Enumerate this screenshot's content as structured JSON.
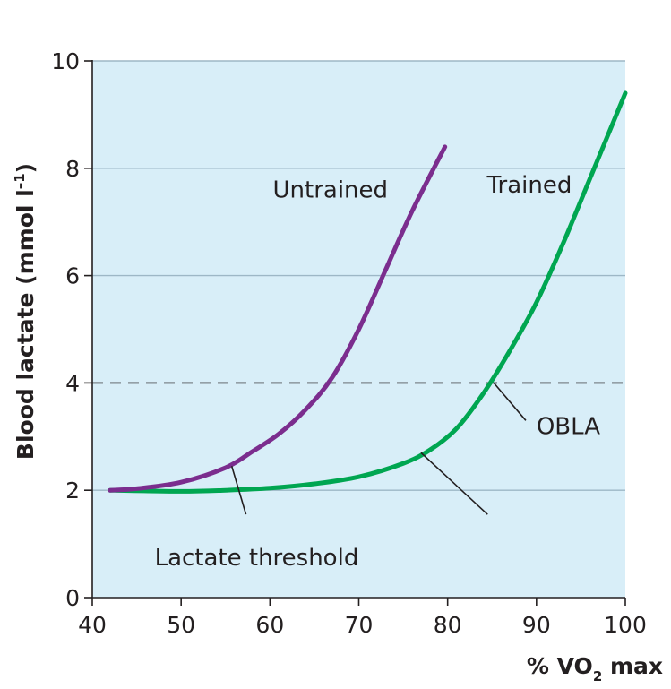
{
  "chart_data": {
    "type": "line",
    "xlabel": {
      "prefix": "% VO",
      "subscript": "2",
      "suffix": " max"
    },
    "ylabel": "Blood lactate (mmol l",
    "ylabel_sup": "–1",
    "ylabel_end": ")",
    "xlim": [
      40,
      100
    ],
    "ylim": [
      0,
      10
    ],
    "xticks": [
      40,
      50,
      60,
      70,
      80,
      90,
      100
    ],
    "yticks": [
      0,
      2,
      4,
      6,
      8,
      10
    ],
    "grid": "horizontal",
    "reference_line": {
      "y": 4,
      "style": "dashed"
    },
    "series": [
      {
        "name": "Untrained",
        "color": "#7b2d8e",
        "points": [
          [
            42,
            2.0
          ],
          [
            45,
            2.03
          ],
          [
            50,
            2.15
          ],
          [
            55,
            2.42
          ],
          [
            58,
            2.72
          ],
          [
            61,
            3.05
          ],
          [
            64,
            3.5
          ],
          [
            67,
            4.1
          ],
          [
            70,
            5.0
          ],
          [
            73,
            6.1
          ],
          [
            76,
            7.2
          ],
          [
            79.7,
            8.4
          ]
        ]
      },
      {
        "name": "Trained",
        "color": "#00a651",
        "points": [
          [
            42,
            2.0
          ],
          [
            50,
            1.98
          ],
          [
            55,
            2.0
          ],
          [
            60,
            2.04
          ],
          [
            65,
            2.12
          ],
          [
            70,
            2.25
          ],
          [
            75,
            2.5
          ],
          [
            78,
            2.75
          ],
          [
            81,
            3.15
          ],
          [
            84,
            3.8
          ],
          [
            87,
            4.6
          ],
          [
            90,
            5.5
          ],
          [
            93,
            6.6
          ],
          [
            96,
            7.8
          ],
          [
            100,
            9.4
          ]
        ]
      }
    ],
    "annotations": [
      {
        "label": "Untrained",
        "text_x": 66.8,
        "text_y": 7.45,
        "anchor": "middle"
      },
      {
        "label": "Trained",
        "text_x": 89.2,
        "text_y": 7.55,
        "anchor": "middle"
      },
      {
        "label": "OBLA",
        "text_x": 90.0,
        "text_y": 3.05,
        "anchor": "start",
        "pointer_from": [
          88.8,
          3.3
        ],
        "pointer_to": [
          85.2,
          4.0
        ]
      },
      {
        "label": "Lactate threshold",
        "text_x": 58.5,
        "text_y": 0.6,
        "anchor": "middle",
        "pointer_from": [
          57.3,
          1.55
        ],
        "pointer_to": [
          55.7,
          2.45
        ],
        "pointer2_from": [
          84.5,
          1.55
        ],
        "pointer2_to": [
          77.0,
          2.7
        ]
      }
    ],
    "colors": {
      "plot_background": "#d8eef8",
      "gridline": "#9db7c6",
      "axis": "#231f20",
      "reference": "#231f20"
    }
  }
}
